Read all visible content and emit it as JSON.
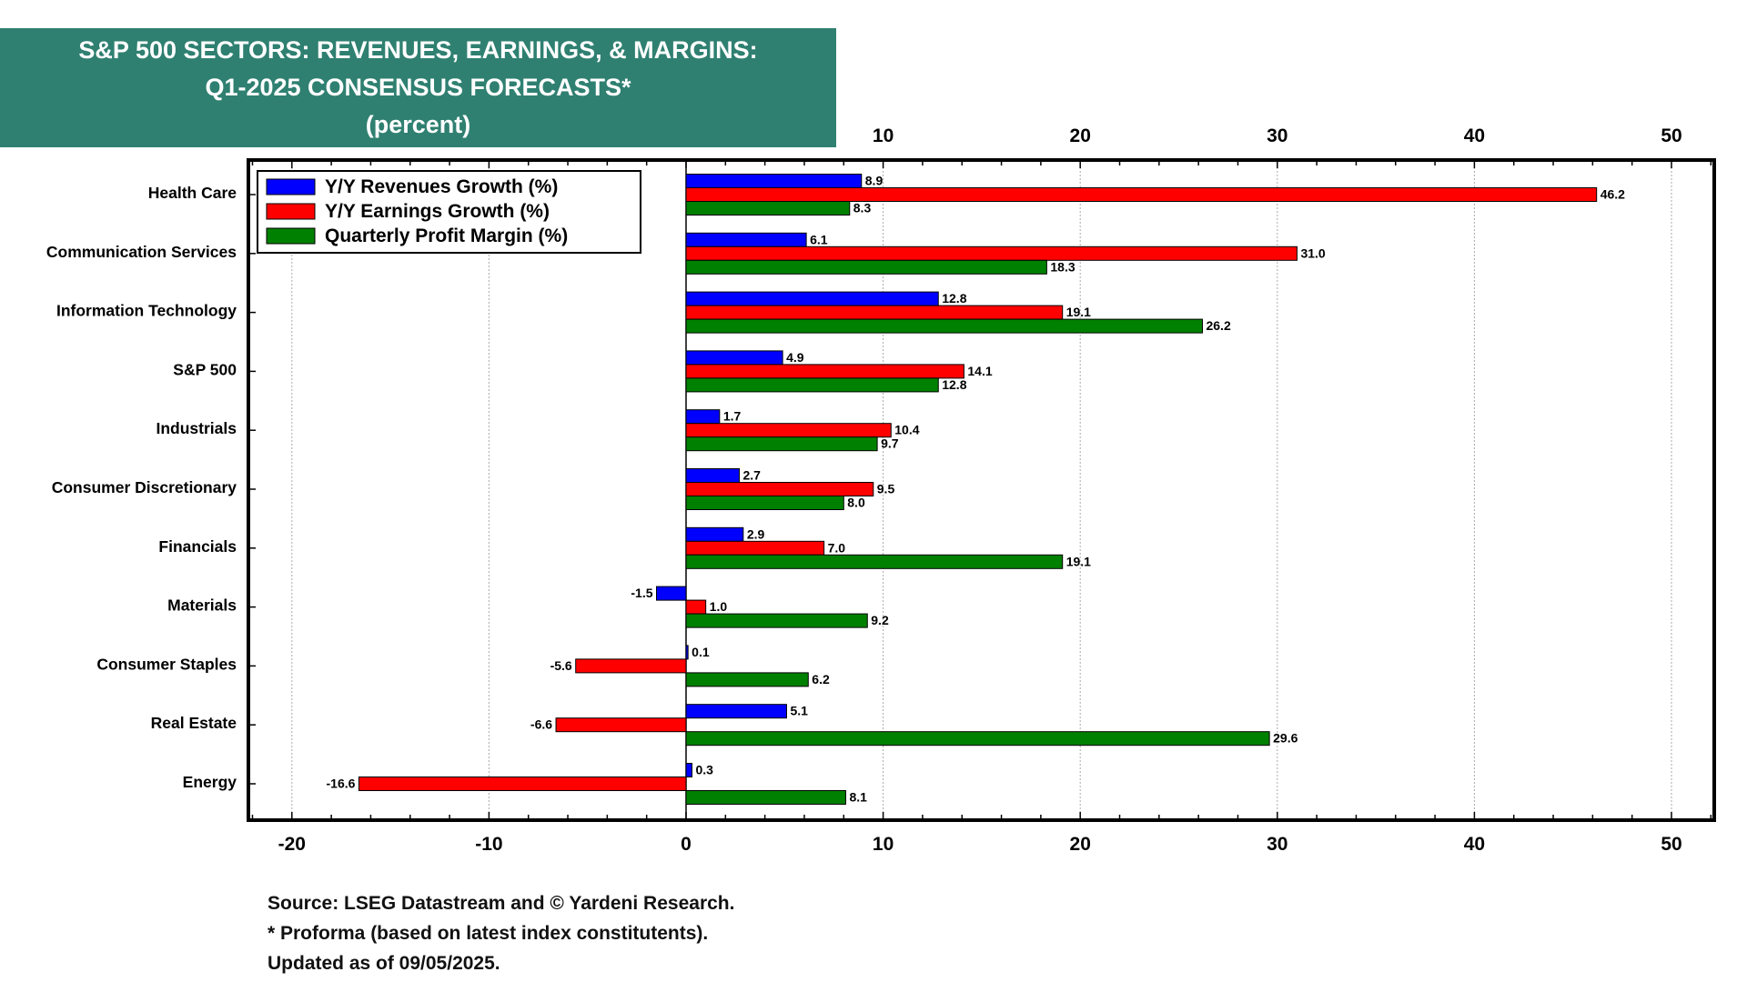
{
  "title_lines": [
    "S&P 500 SECTORS: REVENUES, EARNINGS, & MARGINS:",
    "Q1-2025 CONSENSUS FORECASTS*",
    "(percent)"
  ],
  "footnotes": [
    "Source: LSEG Datastream and © Yardeni Research.",
    "* Proforma (based on latest index constitutents).",
    "Updated as of 09/05/2025."
  ],
  "chart_data": {
    "type": "bar",
    "orientation": "horizontal",
    "title": "S&P 500 SECTORS: REVENUES, EARNINGS, & MARGINS: Q1-2025 CONSENSUS FORECASTS* (percent)",
    "categories": [
      "Health Care",
      "Communication Services",
      "Information Technology",
      "S&P 500",
      "Industrials",
      "Consumer Discretionary",
      "Financials",
      "Materials",
      "Consumer Staples",
      "Real Estate",
      "Energy"
    ],
    "series": [
      {
        "name": "Y/Y Revenues Growth (%)",
        "color": "#0000ff",
        "values": [
          8.9,
          6.1,
          12.8,
          4.9,
          1.7,
          2.7,
          2.9,
          -1.5,
          0.1,
          5.1,
          0.3
        ]
      },
      {
        "name": "Y/Y Earnings Growth (%)",
        "color": "#ff0000",
        "values": [
          46.2,
          31.0,
          19.1,
          14.1,
          10.4,
          9.5,
          7.0,
          1.0,
          -5.6,
          -6.6,
          -16.6
        ]
      },
      {
        "name": "Quarterly Profit Margin (%)",
        "color": "#008000",
        "values": [
          8.3,
          18.3,
          26.2,
          12.8,
          9.7,
          8.0,
          19.1,
          9.2,
          6.2,
          29.6,
          8.1
        ]
      }
    ],
    "xlim": [
      -22,
      52
    ],
    "xticks": [
      -20,
      -10,
      0,
      10,
      20,
      30,
      40,
      50
    ],
    "top_xticks": [
      10,
      20,
      30,
      40,
      50
    ],
    "grid": true,
    "legend_position": "top-left"
  }
}
